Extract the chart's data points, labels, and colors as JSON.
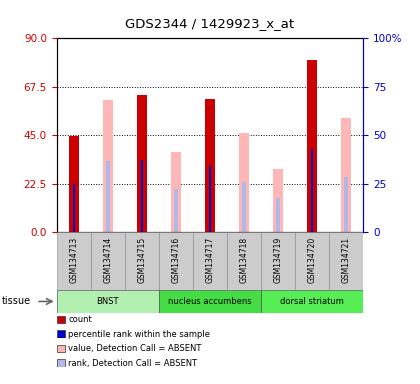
{
  "title": "GDS2344 / 1429923_x_at",
  "samples": [
    "GSM134713",
    "GSM134714",
    "GSM134715",
    "GSM134716",
    "GSM134717",
    "GSM134718",
    "GSM134719",
    "GSM134720",
    "GSM134721"
  ],
  "tissues": [
    {
      "name": "BNST",
      "start": 0,
      "end": 3,
      "color": "#b2f0b2"
    },
    {
      "name": "nucleus accumbens",
      "start": 3,
      "end": 6,
      "color": "#44dd44"
    },
    {
      "name": "dorsal striatum",
      "start": 6,
      "end": 9,
      "color": "#55ee55"
    }
  ],
  "count_values": [
    44.5,
    0,
    63.5,
    0,
    62.0,
    0,
    0,
    80.0,
    0
  ],
  "count_color": "#cc0000",
  "absent_value_values": [
    0,
    61.5,
    0,
    37.5,
    0,
    46.0,
    29.5,
    0,
    53.0
  ],
  "absent_value_color": "#ffb6b6",
  "percentile_rank_values": [
    22.5,
    0,
    33.5,
    0,
    31.0,
    0,
    0,
    38.5,
    0
  ],
  "percentile_rank_color": "#0000cc",
  "absent_rank_values": [
    0,
    33.0,
    0,
    20.0,
    0,
    23.5,
    16.0,
    0,
    25.5
  ],
  "absent_rank_color": "#b0b8e8",
  "ylim_left": [
    0,
    90
  ],
  "ylim_right": [
    0,
    100
  ],
  "yticks_left": [
    0,
    22.5,
    45,
    67.5,
    90
  ],
  "yticks_right": [
    0,
    25,
    50,
    75,
    100
  ],
  "left_axis_color": "#cc0000",
  "right_axis_color": "#0000cc",
  "tissue_label": "tissue",
  "legend_items": [
    {
      "label": "count",
      "color": "#cc0000"
    },
    {
      "label": "percentile rank within the sample",
      "color": "#0000cc"
    },
    {
      "label": "value, Detection Call = ABSENT",
      "color": "#ffb6b6"
    },
    {
      "label": "rank, Detection Call = ABSENT",
      "color": "#b0b8e8"
    }
  ],
  "sample_bg_color": "#cccccc",
  "plot_bg_color": "#ffffff",
  "figure_bg_color": "#ffffff",
  "count_bar_width": 0.28,
  "absent_value_bar_width": 0.28,
  "absent_rank_bar_width": 0.13,
  "percentile_bar_width": 0.07
}
